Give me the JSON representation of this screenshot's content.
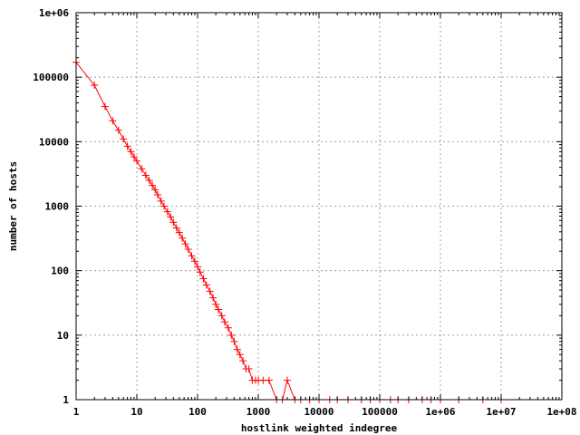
{
  "chart_data": {
    "type": "scatter",
    "title": "",
    "xlabel": "hostlink weighted indegree",
    "ylabel": "number of hosts",
    "xscale": "log",
    "yscale": "log",
    "xlim": [
      1,
      100000000
    ],
    "ylim": [
      1,
      1000000
    ],
    "grid": true,
    "legend": "none",
    "x_ticks": [
      "1",
      "10",
      "100",
      "1000",
      "10000",
      "100000",
      "1e+06",
      "1e+07",
      "1e+08"
    ],
    "y_ticks": [
      "1",
      "10",
      "100",
      "1000",
      "10000",
      "100000",
      "1e+06"
    ],
    "series": [
      {
        "color": "#ff0000",
        "marker": "plus",
        "x": [
          1,
          2,
          3,
          4,
          5,
          6,
          7,
          8,
          9,
          10,
          12,
          14,
          16,
          18,
          20,
          22,
          25,
          28,
          32,
          36,
          40,
          45,
          50,
          56,
          63,
          70,
          80,
          90,
          100,
          110,
          125,
          140,
          160,
          180,
          200,
          220,
          250,
          280,
          320,
          360,
          400,
          450,
          500,
          560,
          630,
          700,
          800,
          900,
          1000,
          1200,
          1500,
          2000,
          2500,
          3000,
          4000,
          5000,
          7000,
          10000,
          15000,
          20000,
          30000,
          50000,
          70000,
          100000,
          150000,
          200000,
          300000,
          500000,
          700000,
          1000000,
          2000000,
          5000000,
          10000000
        ],
        "y": [
          170000,
          75000,
          35000,
          21000,
          15000,
          11000,
          8500,
          7000,
          5800,
          5000,
          3800,
          3000,
          2500,
          2100,
          1800,
          1500,
          1200,
          1000,
          820,
          680,
          560,
          460,
          390,
          320,
          260,
          215,
          170,
          140,
          115,
          95,
          75,
          60,
          48,
          38,
          30,
          25,
          20,
          16,
          13,
          10,
          8,
          6,
          5,
          4,
          3,
          3,
          2,
          2,
          2,
          2,
          2,
          1,
          1,
          2,
          1,
          1,
          1,
          1,
          1,
          1,
          1,
          1,
          1,
          1,
          1,
          1,
          1,
          1,
          1,
          1,
          1,
          1,
          1
        ]
      }
    ]
  }
}
